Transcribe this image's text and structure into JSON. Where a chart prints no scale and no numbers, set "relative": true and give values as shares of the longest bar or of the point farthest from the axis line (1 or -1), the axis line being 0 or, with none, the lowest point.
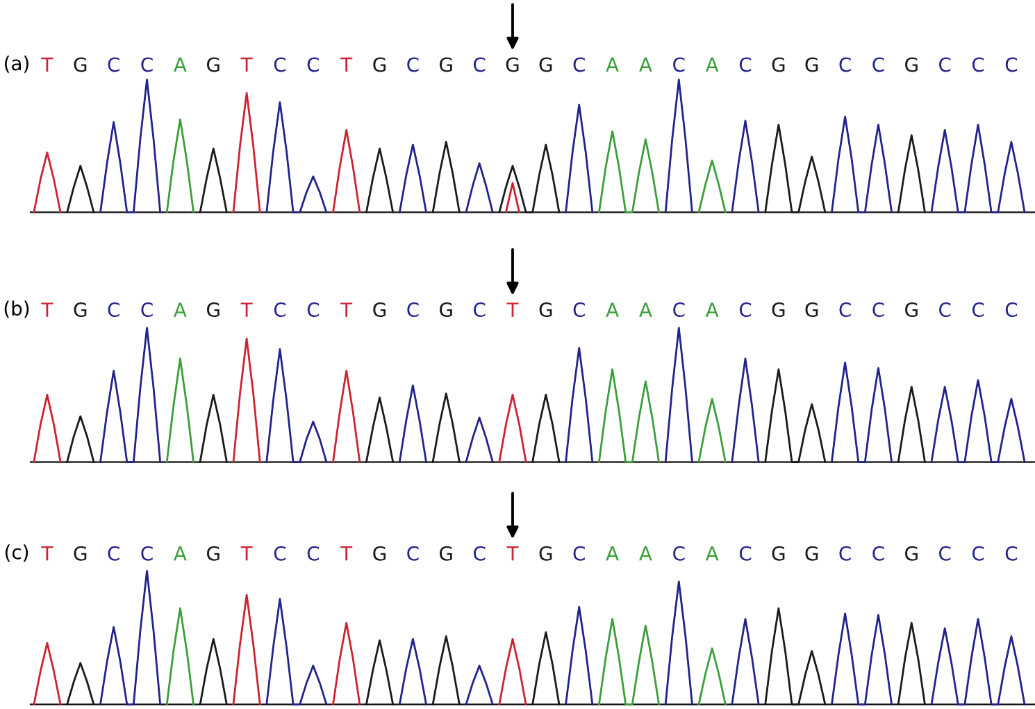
{
  "chart_data": [
    {
      "type": "line",
      "title": "(a)",
      "relative": true,
      "tick_labels": "x",
      "categories": [
        null,
        null,
        "T",
        null,
        null,
        null,
        null,
        "G",
        null,
        null,
        null,
        null,
        "C",
        null,
        null,
        null,
        null,
        "C",
        null,
        null,
        null,
        null,
        "A",
        null,
        null,
        null,
        null,
        "G",
        null,
        null,
        null,
        null,
        "T",
        null,
        null,
        null,
        null,
        "C",
        null,
        null,
        null,
        null,
        "C",
        null,
        null,
        null,
        null,
        "T",
        null,
        null,
        null,
        null,
        "G",
        null,
        null,
        null,
        null,
        "C",
        null,
        null,
        null,
        null,
        "G",
        null,
        null,
        null,
        null,
        "C",
        null,
        null,
        null,
        null,
        "G",
        null,
        null,
        null,
        null,
        "G",
        null,
        null,
        null,
        null,
        "C",
        null,
        null,
        null,
        null,
        "A",
        null,
        null,
        null,
        null,
        "A",
        null,
        null,
        null,
        null,
        "C",
        null,
        null,
        null,
        null,
        "A",
        null,
        null,
        null,
        null,
        "C",
        null,
        null,
        null,
        null,
        "G",
        null,
        null,
        null,
        null,
        "G",
        null,
        null,
        null,
        null,
        "C",
        null,
        null,
        null,
        null,
        "C",
        null,
        null,
        null,
        null,
        "G",
        null,
        null,
        null,
        null,
        "C",
        null,
        null,
        null,
        null,
        "C",
        null,
        null,
        null,
        null,
        "C",
        null,
        null
      ],
      "series": [
        {
          "color": "#1a1a1a",
          "values": [
            null,
            null,
            null,
            null,
            null,
            0,
            0.19,
            0.35,
            0.19,
            0,
            null,
            null,
            null,
            null,
            null,
            null,
            null,
            null,
            null,
            null,
            null,
            null,
            null,
            null,
            null,
            0,
            0.26,
            0.48,
            0.26,
            0,
            null,
            null,
            null,
            null,
            null,
            null,
            null,
            null,
            null,
            null,
            null,
            null,
            null,
            null,
            null,
            null,
            null,
            null,
            null,
            null,
            0,
            0.26,
            0.48,
            0.26,
            0,
            null,
            null,
            null,
            null,
            null,
            0,
            0.29,
            0.53,
            0.29,
            0,
            null,
            null,
            null,
            null,
            null,
            0,
            0.19,
            0.35,
            0.19,
            0,
            0,
            0.28,
            0.51,
            0.28,
            0,
            null,
            null,
            null,
            null,
            null,
            null,
            null,
            null,
            null,
            null,
            null,
            null,
            null,
            null,
            null,
            null,
            null,
            null,
            null,
            null,
            null,
            null,
            null,
            null,
            null,
            null,
            null,
            null,
            null,
            null,
            0,
            0.36,
            0.66,
            0.36,
            0,
            0,
            0.23,
            0.42,
            0.23,
            0,
            null,
            null,
            null,
            null,
            null,
            null,
            null,
            null,
            null,
            null,
            0,
            0.32,
            0.58,
            0.32,
            0,
            null,
            null,
            null,
            null,
            null,
            null,
            null,
            null,
            null,
            null,
            null,
            null,
            null,
            null,
            null
          ]
        },
        {
          "color": "#22228c",
          "values": [
            null,
            null,
            null,
            null,
            null,
            null,
            null,
            null,
            null,
            null,
            0,
            0.37,
            0.68,
            0.37,
            0,
            0,
            0.55,
            1.0,
            0.55,
            0,
            null,
            null,
            null,
            null,
            null,
            null,
            null,
            null,
            null,
            null,
            null,
            null,
            null,
            null,
            null,
            0,
            0.46,
            0.83,
            0.46,
            0,
            0,
            0.15,
            0.27,
            0.15,
            0,
            null,
            null,
            null,
            null,
            null,
            null,
            null,
            null,
            null,
            null,
            0,
            0.28,
            0.51,
            0.28,
            0,
            null,
            null,
            null,
            null,
            null,
            0,
            0.2,
            0.37,
            0.2,
            0,
            null,
            null,
            null,
            null,
            null,
            null,
            null,
            null,
            null,
            null,
            0,
            0.45,
            0.81,
            0.45,
            0,
            null,
            null,
            null,
            null,
            null,
            null,
            null,
            null,
            null,
            null,
            0,
            0.55,
            1.0,
            0.55,
            0,
            null,
            null,
            null,
            null,
            null,
            0,
            0.38,
            0.69,
            0.38,
            0,
            null,
            null,
            null,
            null,
            null,
            null,
            null,
            null,
            null,
            null,
            0,
            0.4,
            0.72,
            0.4,
            0,
            0,
            0.36,
            0.66,
            0.36,
            0,
            null,
            null,
            null,
            null,
            null,
            0,
            0.34,
            0.62,
            0.34,
            0,
            0,
            0.36,
            0.66,
            0.36,
            0,
            0,
            0.29,
            0.53,
            0.29,
            0
          ]
        },
        {
          "color": "#3a9e3a",
          "values": [
            null,
            null,
            null,
            null,
            null,
            null,
            null,
            null,
            null,
            null,
            null,
            null,
            null,
            null,
            null,
            null,
            null,
            null,
            null,
            null,
            0,
            0.39,
            0.7,
            0.39,
            0,
            null,
            null,
            null,
            null,
            null,
            null,
            null,
            null,
            null,
            null,
            null,
            null,
            null,
            null,
            null,
            null,
            null,
            null,
            null,
            null,
            null,
            null,
            null,
            null,
            null,
            null,
            null,
            null,
            null,
            null,
            null,
            null,
            null,
            null,
            null,
            null,
            null,
            null,
            null,
            null,
            null,
            null,
            null,
            null,
            null,
            null,
            null,
            null,
            null,
            null,
            null,
            null,
            null,
            null,
            null,
            null,
            null,
            null,
            null,
            null,
            0,
            0.34,
            0.61,
            0.34,
            0,
            0,
            0.3,
            0.55,
            0.3,
            0,
            null,
            null,
            null,
            null,
            null,
            0,
            0.21,
            0.39,
            0.21,
            0,
            null,
            null,
            null,
            null,
            null,
            null,
            null,
            null,
            null,
            null,
            null,
            null,
            null,
            null,
            null,
            null,
            null,
            null,
            null,
            null,
            null,
            null,
            null,
            null,
            null,
            null,
            null,
            null,
            null,
            null,
            null,
            null,
            null,
            null,
            null,
            null,
            null,
            null,
            null,
            null,
            null,
            null,
            null,
            null,
            null
          ]
        },
        {
          "color": "#cc2233",
          "values": [
            0,
            0.25,
            0.45,
            0.25,
            0,
            null,
            null,
            null,
            null,
            null,
            null,
            null,
            null,
            null,
            null,
            null,
            null,
            null,
            null,
            null,
            null,
            null,
            null,
            null,
            null,
            null,
            null,
            null,
            null,
            null,
            0,
            0.5,
            0.9,
            0.5,
            0,
            null,
            null,
            null,
            null,
            null,
            null,
            null,
            null,
            null,
            null,
            0,
            0.34,
            0.62,
            0.34,
            0,
            null,
            null,
            null,
            null,
            null,
            null,
            null,
            null,
            null,
            null,
            null,
            null,
            null,
            null,
            null,
            null,
            null,
            null,
            null,
            null,
            null,
            0,
            0.22,
            0,
            null,
            null,
            null,
            null,
            null,
            null,
            null,
            null,
            null,
            null,
            null,
            null,
            null,
            null,
            null,
            null,
            null,
            null,
            null,
            null,
            null,
            null,
            null,
            null,
            null,
            null,
            null,
            null,
            null,
            null,
            null,
            null,
            null,
            null,
            null,
            null,
            null,
            null,
            null,
            null,
            null,
            null,
            null,
            null,
            null,
            null,
            null,
            null,
            null,
            null,
            null,
            null,
            null,
            null,
            null,
            null,
            null,
            null,
            null,
            null,
            null,
            null,
            null,
            null,
            null,
            null,
            null,
            null,
            null,
            null,
            null,
            null,
            null,
            null,
            null,
            null
          ]
        }
      ]
    },
    {
      "type": "line",
      "title": "(b)",
      "relative": true,
      "tick_labels": "x",
      "categories": [
        null,
        null,
        "T",
        null,
        null,
        null,
        null,
        "G",
        null,
        null,
        null,
        null,
        "C",
        null,
        null,
        null,
        null,
        "C",
        null,
        null,
        null,
        null,
        "A",
        null,
        null,
        null,
        null,
        "G",
        null,
        null,
        null,
        null,
        "T",
        null,
        null,
        null,
        null,
        "C",
        null,
        null,
        null,
        null,
        "C",
        null,
        null,
        null,
        null,
        "T",
        null,
        null,
        null,
        null,
        "G",
        null,
        null,
        null,
        null,
        "C",
        null,
        null,
        null,
        null,
        "G",
        null,
        null,
        null,
        null,
        "C",
        null,
        null,
        null,
        null,
        "T",
        null,
        null,
        null,
        null,
        "G",
        null,
        null,
        null,
        null,
        "C",
        null,
        null,
        null,
        null,
        "A",
        null,
        null,
        null,
        null,
        "A",
        null,
        null,
        null,
        null,
        "C",
        null,
        null,
        null,
        null,
        "A",
        null,
        null,
        null,
        null,
        "C",
        null,
        null,
        null,
        null,
        "G",
        null,
        null,
        null,
        null,
        "G",
        null,
        null,
        null,
        null,
        "C",
        null,
        null,
        null,
        null,
        "C",
        null,
        null,
        null,
        null,
        "G",
        null,
        null,
        null,
        null,
        "C",
        null,
        null,
        null,
        null,
        "C",
        null,
        null,
        null,
        null,
        "C",
        null,
        null
      ],
      "series": [
        {
          "color": "#1a1a1a",
          "values": [
            null,
            null,
            null,
            null,
            null,
            0,
            0.19,
            0.34,
            0.19,
            0,
            null,
            null,
            null,
            null,
            null,
            null,
            null,
            null,
            null,
            null,
            null,
            null,
            null,
            null,
            null,
            0,
            0.28,
            0.5,
            0.28,
            0,
            null,
            null,
            null,
            null,
            null,
            null,
            null,
            null,
            null,
            null,
            null,
            null,
            null,
            null,
            null,
            null,
            null,
            null,
            null,
            null,
            0,
            0.26,
            0.48,
            0.26,
            0,
            null,
            null,
            null,
            null,
            null,
            0,
            0.28,
            0.51,
            0.28,
            0,
            null,
            null,
            null,
            null,
            null,
            null,
            null,
            null,
            null,
            null,
            0,
            0.28,
            0.5,
            0.28,
            0,
            null,
            null,
            null,
            null,
            null,
            null,
            null,
            null,
            null,
            null,
            null,
            null,
            null,
            null,
            null,
            null,
            null,
            null,
            null,
            null,
            null,
            null,
            null,
            null,
            null,
            null,
            null,
            null,
            null,
            null,
            0,
            0.38,
            0.69,
            0.38,
            0,
            0,
            0.24,
            0.43,
            0.24,
            0,
            null,
            null,
            null,
            null,
            null,
            null,
            null,
            null,
            null,
            null,
            0,
            0.31,
            0.56,
            0.31,
            0,
            null,
            null,
            null,
            null,
            null,
            null,
            null,
            null,
            null,
            null,
            null,
            null,
            null,
            null,
            null
          ]
        },
        {
          "color": "#22228c",
          "values": [
            null,
            null,
            null,
            null,
            null,
            null,
            null,
            null,
            null,
            null,
            0,
            0.37,
            0.68,
            0.37,
            0,
            0,
            0.55,
            1.0,
            0.55,
            0,
            null,
            null,
            null,
            null,
            null,
            null,
            null,
            null,
            null,
            null,
            null,
            null,
            null,
            null,
            null,
            0,
            0.46,
            0.84,
            0.46,
            0,
            0,
            0.17,
            0.3,
            0.17,
            0,
            null,
            null,
            null,
            null,
            null,
            null,
            null,
            null,
            null,
            null,
            0,
            0.31,
            0.57,
            0.31,
            0,
            null,
            null,
            null,
            null,
            null,
            0,
            0.18,
            0.33,
            0.18,
            0,
            null,
            null,
            null,
            null,
            null,
            null,
            null,
            null,
            null,
            null,
            0,
            0.47,
            0.85,
            0.47,
            0,
            null,
            null,
            null,
            null,
            null,
            null,
            null,
            null,
            null,
            null,
            0,
            0.55,
            1.0,
            0.55,
            0,
            null,
            null,
            null,
            null,
            null,
            0,
            0.42,
            0.77,
            0.42,
            0,
            null,
            null,
            null,
            null,
            null,
            null,
            null,
            null,
            null,
            null,
            0,
            0.41,
            0.74,
            0.41,
            0,
            0,
            0.39,
            0.7,
            0.39,
            0,
            null,
            null,
            null,
            null,
            null,
            0,
            0.31,
            0.56,
            0.31,
            0,
            0,
            0.34,
            0.61,
            0.34,
            0,
            0,
            0.26,
            0.47,
            0.26,
            0
          ]
        },
        {
          "color": "#3a9e3a",
          "values": [
            null,
            null,
            null,
            null,
            null,
            null,
            null,
            null,
            null,
            null,
            null,
            null,
            null,
            null,
            null,
            null,
            null,
            null,
            null,
            null,
            0,
            0.42,
            0.77,
            0.42,
            0,
            null,
            null,
            null,
            null,
            null,
            null,
            null,
            null,
            null,
            null,
            null,
            null,
            null,
            null,
            null,
            null,
            null,
            null,
            null,
            null,
            null,
            null,
            null,
            null,
            null,
            null,
            null,
            null,
            null,
            null,
            null,
            null,
            null,
            null,
            null,
            null,
            null,
            null,
            null,
            null,
            null,
            null,
            null,
            null,
            null,
            null,
            null,
            null,
            null,
            null,
            null,
            null,
            null,
            null,
            null,
            null,
            null,
            null,
            null,
            null,
            0,
            0.38,
            0.69,
            0.38,
            0,
            0,
            0.33,
            0.6,
            0.33,
            0,
            null,
            null,
            null,
            null,
            null,
            0,
            0.26,
            0.47,
            0.26,
            0,
            null,
            null,
            null,
            null,
            null,
            null,
            null,
            null,
            null,
            null,
            null,
            null,
            null,
            null,
            null,
            null,
            null,
            null,
            null,
            null,
            null,
            null,
            null,
            null,
            null,
            null,
            null,
            null,
            null,
            null,
            null,
            null,
            null,
            null,
            null,
            null,
            null,
            null,
            null,
            null,
            null,
            null,
            null,
            null,
            null
          ]
        },
        {
          "color": "#cc2233",
          "values": [
            0,
            0.28,
            0.5,
            0.28,
            0,
            null,
            null,
            null,
            null,
            null,
            null,
            null,
            null,
            null,
            null,
            null,
            null,
            null,
            null,
            null,
            null,
            null,
            null,
            null,
            null,
            null,
            null,
            null,
            null,
            null,
            0,
            0.51,
            0.92,
            0.51,
            0,
            null,
            null,
            null,
            null,
            null,
            null,
            null,
            null,
            null,
            null,
            0,
            0.37,
            0.68,
            0.37,
            0,
            null,
            null,
            null,
            null,
            null,
            null,
            null,
            null,
            null,
            null,
            null,
            null,
            null,
            null,
            null,
            null,
            null,
            null,
            null,
            null,
            0,
            0.28,
            0.5,
            0.28,
            0,
            null,
            null,
            null,
            null,
            null,
            null,
            null,
            null,
            null,
            null,
            null,
            null,
            null,
            null,
            null,
            null,
            null,
            null,
            null,
            null,
            null,
            null,
            null,
            null,
            null,
            null,
            null,
            null,
            null,
            null,
            null,
            null,
            null,
            null,
            null,
            null,
            null,
            null,
            null,
            null,
            null,
            null,
            null,
            null,
            null,
            null,
            null,
            null,
            null,
            null,
            null,
            null,
            null,
            null,
            null,
            null,
            null,
            null,
            null,
            null,
            null,
            null,
            null,
            null,
            null,
            null,
            null,
            null,
            null,
            null,
            null,
            null,
            null,
            null,
            null
          ]
        }
      ]
    },
    {
      "type": "line",
      "title": "(c)",
      "relative": true,
      "tick_labels": "x",
      "categories": [
        null,
        null,
        "T",
        null,
        null,
        null,
        null,
        "G",
        null,
        null,
        null,
        null,
        "C",
        null,
        null,
        null,
        null,
        "C",
        null,
        null,
        null,
        null,
        "A",
        null,
        null,
        null,
        null,
        "G",
        null,
        null,
        null,
        null,
        "T",
        null,
        null,
        null,
        null,
        "C",
        null,
        null,
        null,
        null,
        "C",
        null,
        null,
        null,
        null,
        "T",
        null,
        null,
        null,
        null,
        "G",
        null,
        null,
        null,
        null,
        "C",
        null,
        null,
        null,
        null,
        "G",
        null,
        null,
        null,
        null,
        "C",
        null,
        null,
        null,
        null,
        "T",
        null,
        null,
        null,
        null,
        "G",
        null,
        null,
        null,
        null,
        "C",
        null,
        null,
        null,
        null,
        "A",
        null,
        null,
        null,
        null,
        "A",
        null,
        null,
        null,
        null,
        "C",
        null,
        null,
        null,
        null,
        "A",
        null,
        null,
        null,
        null,
        "C",
        null,
        null,
        null,
        null,
        "G",
        null,
        null,
        null,
        null,
        "G",
        null,
        null,
        null,
        null,
        "C",
        null,
        null,
        null,
        null,
        "C",
        null,
        null,
        null,
        null,
        "G",
        null,
        null,
        null,
        null,
        "C",
        null,
        null,
        null,
        null,
        "C",
        null,
        null,
        null,
        null,
        "C",
        null,
        null
      ],
      "series": [
        {
          "color": "#1a1a1a",
          "values": [
            null,
            null,
            null,
            null,
            null,
            0,
            0.17,
            0.31,
            0.17,
            0,
            null,
            null,
            null,
            null,
            null,
            null,
            null,
            null,
            null,
            null,
            null,
            null,
            null,
            null,
            null,
            0,
            0.27,
            0.49,
            0.27,
            0,
            null,
            null,
            null,
            null,
            null,
            null,
            null,
            null,
            null,
            null,
            null,
            null,
            null,
            null,
            null,
            null,
            null,
            null,
            null,
            null,
            0,
            0.26,
            0.48,
            0.26,
            0,
            null,
            null,
            null,
            null,
            null,
            0,
            0.28,
            0.51,
            0.28,
            0,
            null,
            null,
            null,
            null,
            null,
            null,
            null,
            null,
            null,
            null,
            0,
            0.3,
            0.54,
            0.3,
            0,
            null,
            null,
            null,
            null,
            null,
            null,
            null,
            null,
            null,
            null,
            null,
            null,
            null,
            null,
            null,
            null,
            null,
            null,
            null,
            null,
            null,
            null,
            null,
            null,
            null,
            null,
            null,
            null,
            null,
            null,
            0,
            0.4,
            0.72,
            0.4,
            0,
            0,
            0.22,
            0.4,
            0.22,
            0,
            null,
            null,
            null,
            null,
            null,
            null,
            null,
            null,
            null,
            null,
            0,
            0.34,
            0.61,
            0.34,
            0,
            null,
            null,
            null,
            null,
            null,
            null,
            null,
            null,
            null,
            null,
            null,
            null,
            null,
            null,
            null
          ]
        },
        {
          "color": "#22228c",
          "values": [
            null,
            null,
            null,
            null,
            null,
            null,
            null,
            null,
            null,
            null,
            0,
            0.32,
            0.58,
            0.32,
            0,
            0,
            0.55,
            1.0,
            0.55,
            0,
            null,
            null,
            null,
            null,
            null,
            null,
            null,
            null,
            null,
            null,
            null,
            null,
            null,
            null,
            null,
            0,
            0.43,
            0.79,
            0.43,
            0,
            0,
            0.16,
            0.29,
            0.16,
            0,
            null,
            null,
            null,
            null,
            null,
            null,
            null,
            null,
            null,
            null,
            0,
            0.27,
            0.49,
            0.27,
            0,
            null,
            null,
            null,
            null,
            null,
            0,
            0.16,
            0.29,
            0.16,
            0,
            null,
            null,
            null,
            null,
            null,
            null,
            null,
            null,
            null,
            null,
            0,
            0.4,
            0.73,
            0.4,
            0,
            null,
            null,
            null,
            null,
            null,
            null,
            null,
            null,
            null,
            null,
            0,
            0.51,
            0.92,
            0.51,
            0,
            null,
            null,
            null,
            null,
            null,
            0,
            0.35,
            0.64,
            0.35,
            0,
            null,
            null,
            null,
            null,
            null,
            null,
            null,
            null,
            null,
            null,
            0,
            0.37,
            0.68,
            0.37,
            0,
            0,
            0.37,
            0.67,
            0.37,
            0,
            null,
            null,
            null,
            null,
            null,
            0,
            0.31,
            0.57,
            0.31,
            0,
            0,
            0.35,
            0.64,
            0.35,
            0,
            0,
            0.28,
            0.51,
            0.28,
            0
          ]
        },
        {
          "color": "#3a9e3a",
          "values": [
            null,
            null,
            null,
            null,
            null,
            null,
            null,
            null,
            null,
            null,
            null,
            null,
            null,
            null,
            null,
            null,
            null,
            null,
            null,
            null,
            0,
            0.4,
            0.72,
            0.4,
            0,
            null,
            null,
            null,
            null,
            null,
            null,
            null,
            null,
            null,
            null,
            null,
            null,
            null,
            null,
            null,
            null,
            null,
            null,
            null,
            null,
            null,
            null,
            null,
            null,
            null,
            null,
            null,
            null,
            null,
            null,
            null,
            null,
            null,
            null,
            null,
            null,
            null,
            null,
            null,
            null,
            null,
            null,
            null,
            null,
            null,
            null,
            null,
            null,
            null,
            null,
            null,
            null,
            null,
            null,
            null,
            null,
            null,
            null,
            null,
            null,
            0,
            0.35,
            0.64,
            0.35,
            0,
            0,
            0.32,
            0.59,
            0.32,
            0,
            null,
            null,
            null,
            null,
            null,
            0,
            0.23,
            0.42,
            0.23,
            0,
            null,
            null,
            null,
            null,
            null,
            null,
            null,
            null,
            null,
            null,
            null,
            null,
            null,
            null,
            null,
            null,
            null,
            null,
            null,
            null,
            null,
            null,
            null,
            null,
            null,
            null,
            null,
            null,
            null,
            null,
            null,
            null,
            null,
            null,
            null,
            null,
            null,
            null,
            null,
            null,
            null,
            null,
            null,
            null,
            null
          ]
        },
        {
          "color": "#cc2233",
          "values": [
            0,
            0.25,
            0.46,
            0.25,
            0,
            null,
            null,
            null,
            null,
            null,
            null,
            null,
            null,
            null,
            null,
            null,
            null,
            null,
            null,
            null,
            null,
            null,
            null,
            null,
            null,
            null,
            null,
            null,
            null,
            null,
            0,
            0.45,
            0.82,
            0.45,
            0,
            null,
            null,
            null,
            null,
            null,
            null,
            null,
            null,
            null,
            null,
            0,
            0.34,
            0.61,
            0.34,
            0,
            null,
            null,
            null,
            null,
            null,
            null,
            null,
            null,
            null,
            null,
            null,
            null,
            null,
            null,
            null,
            null,
            null,
            null,
            null,
            null,
            0,
            0.27,
            0.49,
            0.27,
            0,
            null,
            null,
            null,
            null,
            null,
            null,
            null,
            null,
            null,
            null,
            null,
            null,
            null,
            null,
            null,
            null,
            null,
            null,
            null,
            null,
            null,
            null,
            null,
            null,
            null,
            null,
            null,
            null,
            null,
            null,
            null,
            null,
            null,
            null,
            null,
            null,
            null,
            null,
            null,
            null,
            null,
            null,
            null,
            null,
            null,
            null,
            null,
            null,
            null,
            null,
            null,
            null,
            null,
            null,
            null,
            null,
            null,
            null,
            null,
            null,
            null,
            null,
            null,
            null,
            null,
            null,
            null,
            null,
            null,
            null,
            null,
            null,
            null,
            null,
            null
          ]
        }
      ]
    }
  ]
}
